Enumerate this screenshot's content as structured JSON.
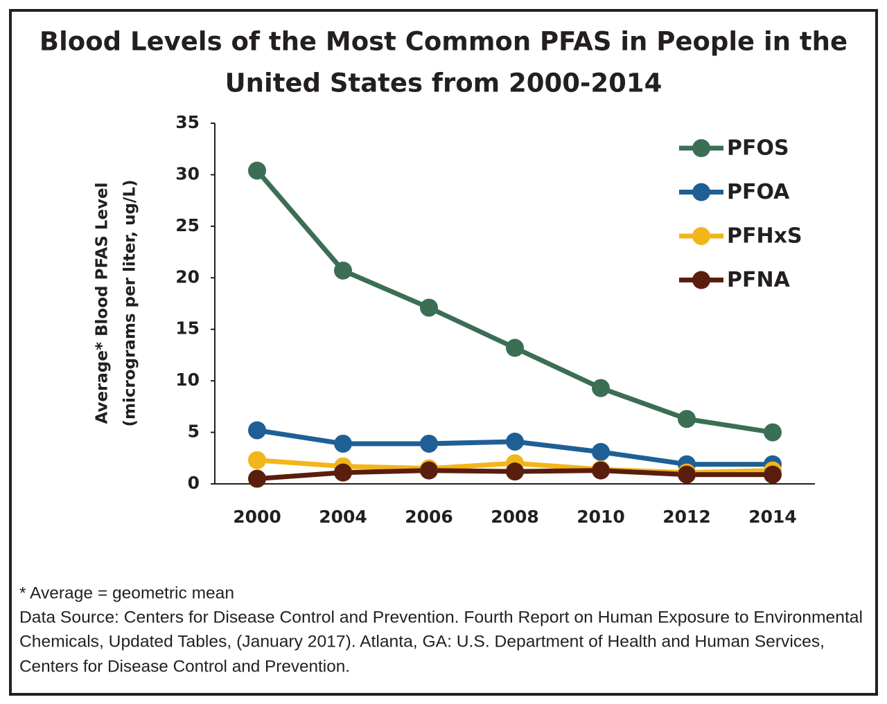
{
  "chart_data": {
    "type": "line",
    "title": [
      "Blood Levels of the Most Common PFAS in People in the",
      "United States from 2000-2014"
    ],
    "ylabel": [
      "Average* Blood PFAS Level",
      "(micrograms per liter, ug/L)"
    ],
    "categories": [
      "2000",
      "2004",
      "2006",
      "2008",
      "2010",
      "2012",
      "2014"
    ],
    "series": [
      {
        "name": "PFOS",
        "color": "#3b6e55",
        "values": [
          30.4,
          20.7,
          17.1,
          13.2,
          9.3,
          6.3,
          5.0
        ]
      },
      {
        "name": "PFOA",
        "color": "#1f5f96",
        "values": [
          5.2,
          3.9,
          3.9,
          4.1,
          3.1,
          1.9,
          1.9
        ]
      },
      {
        "name": "PFHxS",
        "color": "#f2b51a",
        "values": [
          2.3,
          1.7,
          1.5,
          2.0,
          1.4,
          1.1,
          1.3
        ]
      },
      {
        "name": "PFNA",
        "color": "#5a1e0e",
        "values": [
          0.5,
          1.1,
          1.3,
          1.2,
          1.3,
          0.9,
          0.9
        ]
      }
    ],
    "ylim": [
      0,
      35
    ],
    "yticks": [
      0,
      5,
      10,
      15,
      20,
      25,
      30,
      35
    ],
    "legend": "upper right",
    "notes": [
      "* Average = geometric mean",
      "Data Source: Centers for Disease Control and Prevention. Fourth Report on Human Exposure to Environmental",
      "Chemicals, Updated Tables, (January 2017). Atlanta, GA: U.S. Department of Health and Human Services,",
      "Centers for Disease Control and Prevention."
    ]
  }
}
